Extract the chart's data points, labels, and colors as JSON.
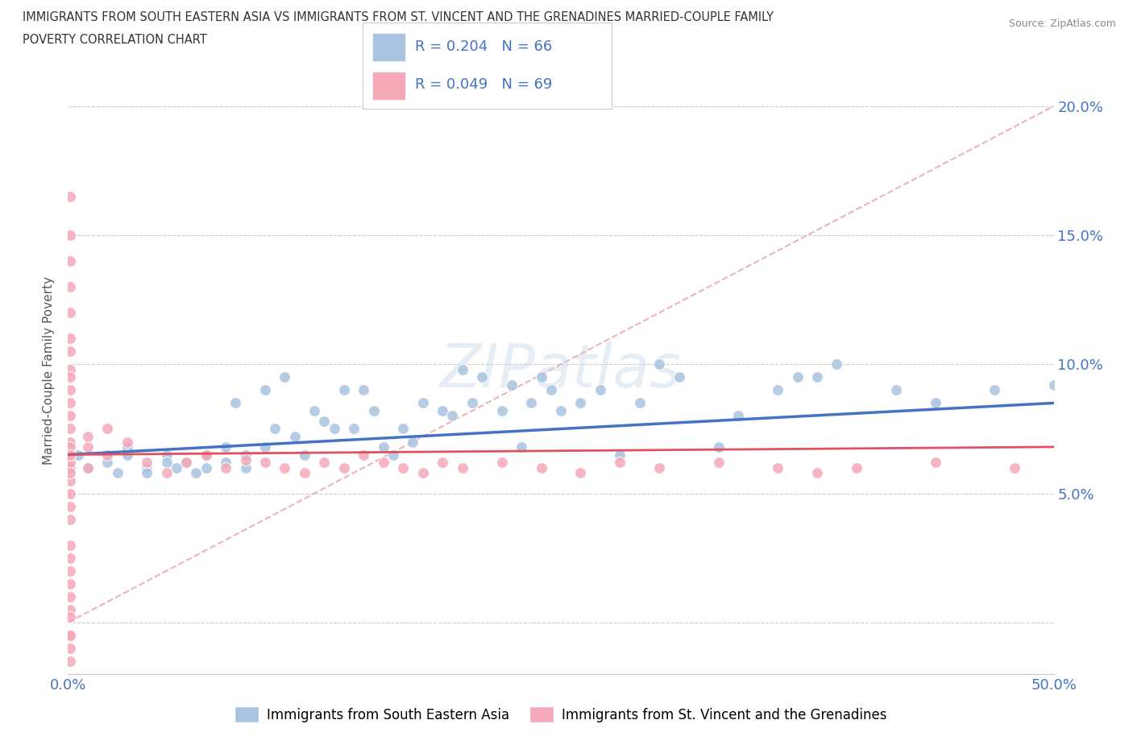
{
  "title_line1": "IMMIGRANTS FROM SOUTH EASTERN ASIA VS IMMIGRANTS FROM ST. VINCENT AND THE GRENADINES MARRIED-COUPLE FAMILY",
  "title_line2": "POVERTY CORRELATION CHART",
  "source_text": "Source: ZipAtlas.com",
  "ylabel": "Married-Couple Family Poverty",
  "xlim": [
    0.0,
    0.5
  ],
  "ylim": [
    -0.02,
    0.215
  ],
  "blue_R": 0.204,
  "blue_N": 66,
  "pink_R": 0.049,
  "pink_N": 69,
  "blue_color": "#a8c4e0",
  "pink_color": "#f4a8b8",
  "blue_line_color": "#4472c4",
  "pink_line_color": "#e05060",
  "diag_line_color": "#e08090",
  "watermark": "ZIPatlas",
  "blue_scatter_x": [
    0.005,
    0.01,
    0.02,
    0.025,
    0.03,
    0.03,
    0.04,
    0.04,
    0.05,
    0.05,
    0.055,
    0.06,
    0.065,
    0.07,
    0.07,
    0.08,
    0.08,
    0.085,
    0.09,
    0.09,
    0.1,
    0.1,
    0.105,
    0.11,
    0.115,
    0.12,
    0.125,
    0.13,
    0.135,
    0.14,
    0.145,
    0.15,
    0.155,
    0.16,
    0.165,
    0.17,
    0.175,
    0.18,
    0.19,
    0.195,
    0.2,
    0.205,
    0.21,
    0.22,
    0.225,
    0.23,
    0.235,
    0.24,
    0.245,
    0.25,
    0.26,
    0.27,
    0.28,
    0.29,
    0.3,
    0.31,
    0.33,
    0.34,
    0.36,
    0.37,
    0.38,
    0.39,
    0.42,
    0.44,
    0.47,
    0.5
  ],
  "blue_scatter_y": [
    0.065,
    0.06,
    0.062,
    0.058,
    0.068,
    0.065,
    0.06,
    0.058,
    0.065,
    0.062,
    0.06,
    0.062,
    0.058,
    0.065,
    0.06,
    0.068,
    0.062,
    0.085,
    0.065,
    0.06,
    0.068,
    0.09,
    0.075,
    0.095,
    0.072,
    0.065,
    0.082,
    0.078,
    0.075,
    0.09,
    0.075,
    0.09,
    0.082,
    0.068,
    0.065,
    0.075,
    0.07,
    0.085,
    0.082,
    0.08,
    0.098,
    0.085,
    0.095,
    0.082,
    0.092,
    0.068,
    0.085,
    0.095,
    0.09,
    0.082,
    0.085,
    0.09,
    0.065,
    0.085,
    0.1,
    0.095,
    0.068,
    0.08,
    0.09,
    0.095,
    0.095,
    0.1,
    0.09,
    0.085,
    0.09,
    0.092
  ],
  "pink_scatter_x": [
    0.001,
    0.001,
    0.001,
    0.001,
    0.001,
    0.001,
    0.001,
    0.001,
    0.001,
    0.001,
    0.001,
    0.001,
    0.001,
    0.001,
    0.001,
    0.001,
    0.001,
    0.001,
    0.001,
    0.001,
    0.001,
    0.001,
    0.001,
    0.001,
    0.001,
    0.001,
    0.001,
    0.001,
    0.001,
    0.001,
    0.001,
    0.001,
    0.001,
    0.001,
    0.001,
    0.01,
    0.01,
    0.01,
    0.02,
    0.02,
    0.03,
    0.04,
    0.05,
    0.06,
    0.07,
    0.08,
    0.09,
    0.1,
    0.11,
    0.12,
    0.13,
    0.14,
    0.15,
    0.16,
    0.17,
    0.18,
    0.19,
    0.2,
    0.22,
    0.24,
    0.26,
    0.28,
    0.3,
    0.33,
    0.36,
    0.38,
    0.4,
    0.44,
    0.48
  ],
  "pink_scatter_y": [
    0.065,
    0.07,
    0.06,
    0.055,
    0.068,
    0.062,
    0.058,
    0.05,
    0.065,
    0.045,
    0.075,
    0.08,
    0.09,
    0.098,
    0.085,
    0.11,
    0.12,
    0.13,
    0.14,
    0.15,
    0.165,
    0.105,
    0.095,
    0.04,
    0.03,
    0.025,
    0.02,
    0.015,
    0.01,
    0.005,
    -0.005,
    -0.01,
    -0.015,
    -0.005,
    0.002,
    0.068,
    0.072,
    0.06,
    0.065,
    0.075,
    0.07,
    0.062,
    0.058,
    0.062,
    0.065,
    0.06,
    0.063,
    0.062,
    0.06,
    0.058,
    0.062,
    0.06,
    0.065,
    0.062,
    0.06,
    0.058,
    0.062,
    0.06,
    0.062,
    0.06,
    0.058,
    0.062,
    0.06,
    0.062,
    0.06,
    0.058,
    0.06,
    0.062,
    0.06
  ]
}
